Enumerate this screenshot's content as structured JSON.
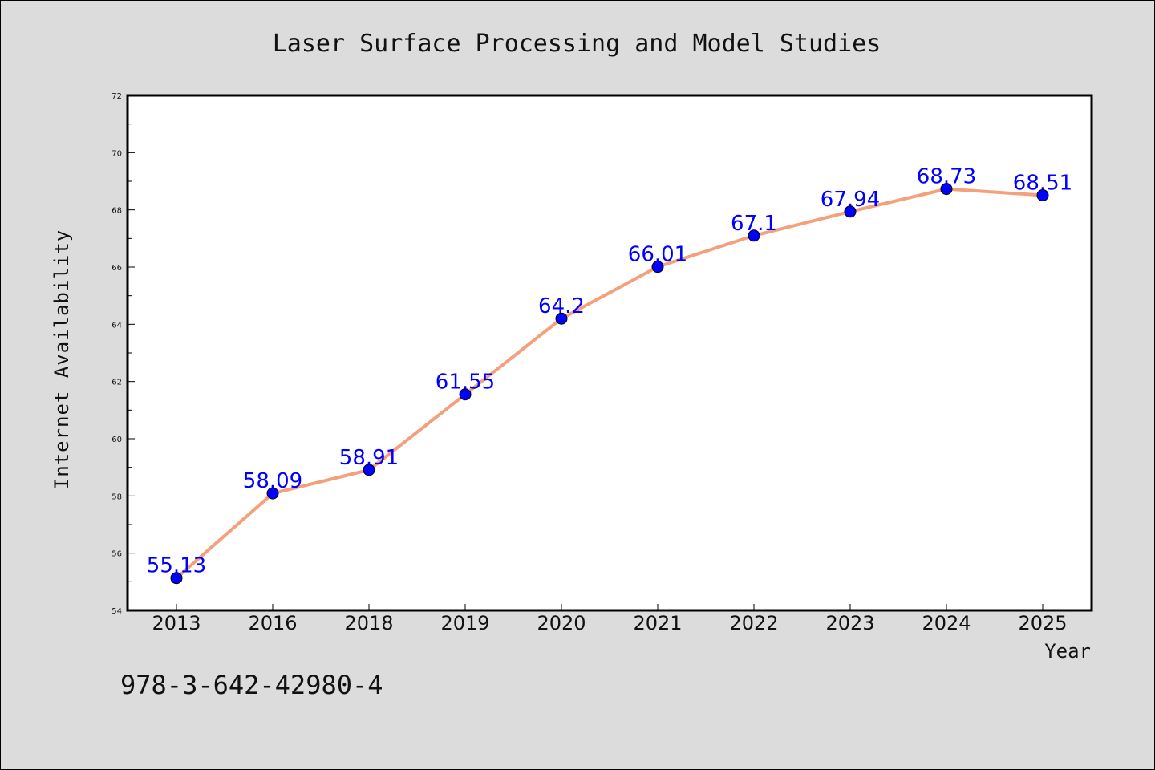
{
  "chart_data": {
    "type": "line",
    "title": "Laser Surface Processing and Model Studies",
    "xlabel": "Year",
    "ylabel": "Internet Availability",
    "categories": [
      "2013",
      "2016",
      "2018",
      "2019",
      "2020",
      "2021",
      "2022",
      "2023",
      "2024",
      "2025"
    ],
    "values": [
      55.13,
      58.09,
      58.91,
      61.55,
      64.2,
      66.01,
      67.1,
      67.94,
      68.73,
      68.51
    ],
    "data_labels": [
      "55.13",
      "58.09",
      "58.91",
      "61.55",
      "64.2",
      "66.01",
      "67.1",
      "67.94",
      "68.73",
      "68.51"
    ],
    "ylim": [
      54,
      72
    ],
    "yticks": [
      54,
      56,
      58,
      60,
      62,
      64,
      66,
      68,
      70,
      72
    ],
    "grid": false,
    "colors": {
      "line": "#f4a07c",
      "marker": "#0000ff",
      "label": "#0000ff"
    }
  },
  "footer": {
    "isbn": "978-3-642-42980-4"
  }
}
